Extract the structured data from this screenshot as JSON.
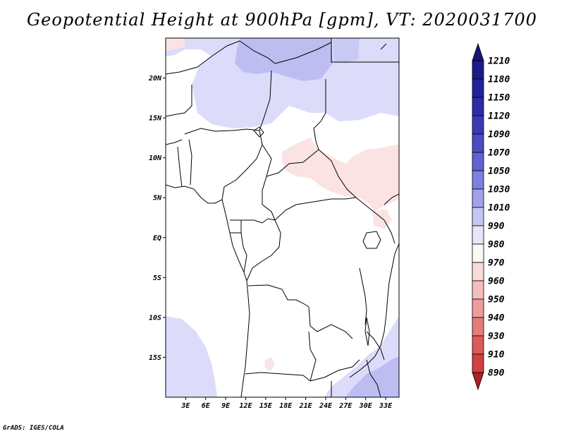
{
  "title": "Geopotential Height at 900hPa [gpm], VT: 2020031700",
  "credit": "GrADS: IGES/COLA",
  "map": {
    "lon_range": [
      0,
      35
    ],
    "lat_range": [
      -20,
      25
    ],
    "lat_ticks": [
      {
        "value": 20,
        "label": "20N"
      },
      {
        "value": 15,
        "label": "15N"
      },
      {
        "value": 10,
        "label": "10N"
      },
      {
        "value": 5,
        "label": "5N"
      },
      {
        "value": 0,
        "label": "EQ"
      },
      {
        "value": -5,
        "label": "5S"
      },
      {
        "value": -10,
        "label": "10S"
      },
      {
        "value": -15,
        "label": "15S"
      }
    ],
    "lon_ticks": [
      {
        "value": 3,
        "label": "3E"
      },
      {
        "value": 6,
        "label": "6E"
      },
      {
        "value": 9,
        "label": "9E"
      },
      {
        "value": 12,
        "label": "12E"
      },
      {
        "value": 15,
        "label": "15E"
      },
      {
        "value": 18,
        "label": "18E"
      },
      {
        "value": 21,
        "label": "21E"
      },
      {
        "value": 24,
        "label": "24E"
      },
      {
        "value": 27,
        "label": "27E"
      },
      {
        "value": 30,
        "label": "30E"
      },
      {
        "value": 33,
        "label": "33E"
      }
    ]
  },
  "colorbar": {
    "levels": [
      {
        "label": "1210",
        "color": "#1b1b8c"
      },
      {
        "label": "1180",
        "color": "#232399"
      },
      {
        "label": "1150",
        "color": "#2c2ca8"
      },
      {
        "label": "1120",
        "color": "#3a3ab5"
      },
      {
        "label": "1090",
        "color": "#4b4bc4"
      },
      {
        "label": "1070",
        "color": "#6262d2"
      },
      {
        "label": "1050",
        "color": "#7f7fe0"
      },
      {
        "label": "1030",
        "color": "#a2a2ec"
      },
      {
        "label": "1010",
        "color": "#c6c6f5"
      },
      {
        "label": "990",
        "color": "#e6e6fb"
      },
      {
        "label": "980",
        "color": "#fdf7f7"
      },
      {
        "label": "970",
        "color": "#fbdada"
      },
      {
        "label": "960",
        "color": "#f6bdbd"
      },
      {
        "label": "950",
        "color": "#ee9c9c"
      },
      {
        "label": "940",
        "color": "#e57b7b"
      },
      {
        "label": "930",
        "color": "#dd5a5a"
      },
      {
        "label": "910",
        "color": "#d24040"
      },
      {
        "label": "890",
        "color": "#c42c2c"
      }
    ],
    "top_color": "#16167a",
    "bottom_color": "#b02020"
  }
}
